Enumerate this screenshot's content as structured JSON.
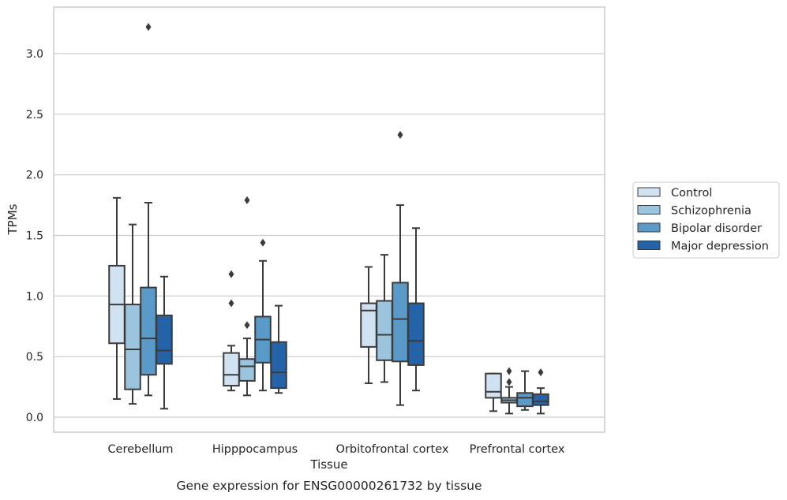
{
  "chart_data": {
    "type": "box",
    "title": "",
    "caption": "Gene expression for ENSG00000261732 by tissue",
    "xlabel": "Tissue",
    "ylabel": "TPMs",
    "ylim": [
      -0.12,
      3.4
    ],
    "yticks": [
      0.0,
      0.5,
      1.0,
      1.5,
      2.0,
      2.5,
      3.0
    ],
    "ytick_labels": [
      "0.0",
      "0.5",
      "1.0",
      "1.5",
      "2.0",
      "2.5",
      "3.0"
    ],
    "grid": "horizontal",
    "legend_position": "right",
    "categories": [
      "Cerebellum",
      "Hipppocampus",
      "Orbitofrontal cortex",
      "Prefrontal cortex"
    ],
    "colors": [
      "#d0e1f2",
      "#9bc4df",
      "#5a9ac8",
      "#2463a8"
    ],
    "series": [
      {
        "name": "Control",
        "boxes": [
          {
            "whisker_low": 0.15,
            "q1": 0.61,
            "median": 0.93,
            "q3": 1.25,
            "whisker_high": 1.81,
            "outliers": []
          },
          {
            "whisker_low": 0.22,
            "q1": 0.26,
            "median": 0.35,
            "q3": 0.53,
            "whisker_high": 0.59,
            "outliers": [
              0.94,
              1.18
            ]
          },
          {
            "whisker_low": 0.28,
            "q1": 0.58,
            "median": 0.88,
            "q3": 0.94,
            "whisker_high": 1.24,
            "outliers": []
          },
          {
            "whisker_low": 0.05,
            "q1": 0.16,
            "median": 0.21,
            "q3": 0.36,
            "whisker_high": 0.36,
            "outliers": []
          }
        ]
      },
      {
        "name": "Schizophrenia",
        "boxes": [
          {
            "whisker_low": 0.11,
            "q1": 0.23,
            "median": 0.56,
            "q3": 0.93,
            "whisker_high": 1.59,
            "outliers": []
          },
          {
            "whisker_low": 0.18,
            "q1": 0.3,
            "median": 0.42,
            "q3": 0.48,
            "whisker_high": 0.65,
            "outliers": [
              0.76,
              1.79
            ]
          },
          {
            "whisker_low": 0.29,
            "q1": 0.47,
            "median": 0.68,
            "q3": 0.96,
            "whisker_high": 1.34,
            "outliers": []
          },
          {
            "whisker_low": 0.03,
            "q1": 0.12,
            "median": 0.14,
            "q3": 0.16,
            "whisker_high": 0.25,
            "outliers": [
              0.29,
              0.38
            ]
          }
        ]
      },
      {
        "name": "Bipolar disorder",
        "boxes": [
          {
            "whisker_low": 0.18,
            "q1": 0.35,
            "median": 0.65,
            "q3": 1.07,
            "whisker_high": 1.77,
            "outliers": [
              3.22
            ]
          },
          {
            "whisker_low": 0.22,
            "q1": 0.45,
            "median": 0.64,
            "q3": 0.83,
            "whisker_high": 1.29,
            "outliers": [
              1.44
            ]
          },
          {
            "whisker_low": 0.1,
            "q1": 0.46,
            "median": 0.81,
            "q3": 1.11,
            "whisker_high": 1.75,
            "outliers": [
              2.33
            ]
          },
          {
            "whisker_low": 0.06,
            "q1": 0.09,
            "median": 0.16,
            "q3": 0.2,
            "whisker_high": 0.38,
            "outliers": []
          }
        ]
      },
      {
        "name": "Major depression",
        "boxes": [
          {
            "whisker_low": 0.07,
            "q1": 0.44,
            "median": 0.55,
            "q3": 0.84,
            "whisker_high": 1.16,
            "outliers": []
          },
          {
            "whisker_low": 0.2,
            "q1": 0.24,
            "median": 0.37,
            "q3": 0.62,
            "whisker_high": 0.92,
            "outliers": []
          },
          {
            "whisker_low": 0.22,
            "q1": 0.43,
            "median": 0.63,
            "q3": 0.94,
            "whisker_high": 1.56,
            "outliers": []
          },
          {
            "whisker_low": 0.03,
            "q1": 0.1,
            "median": 0.13,
            "q3": 0.19,
            "whisker_high": 0.24,
            "outliers": [
              0.37
            ]
          }
        ]
      }
    ]
  }
}
